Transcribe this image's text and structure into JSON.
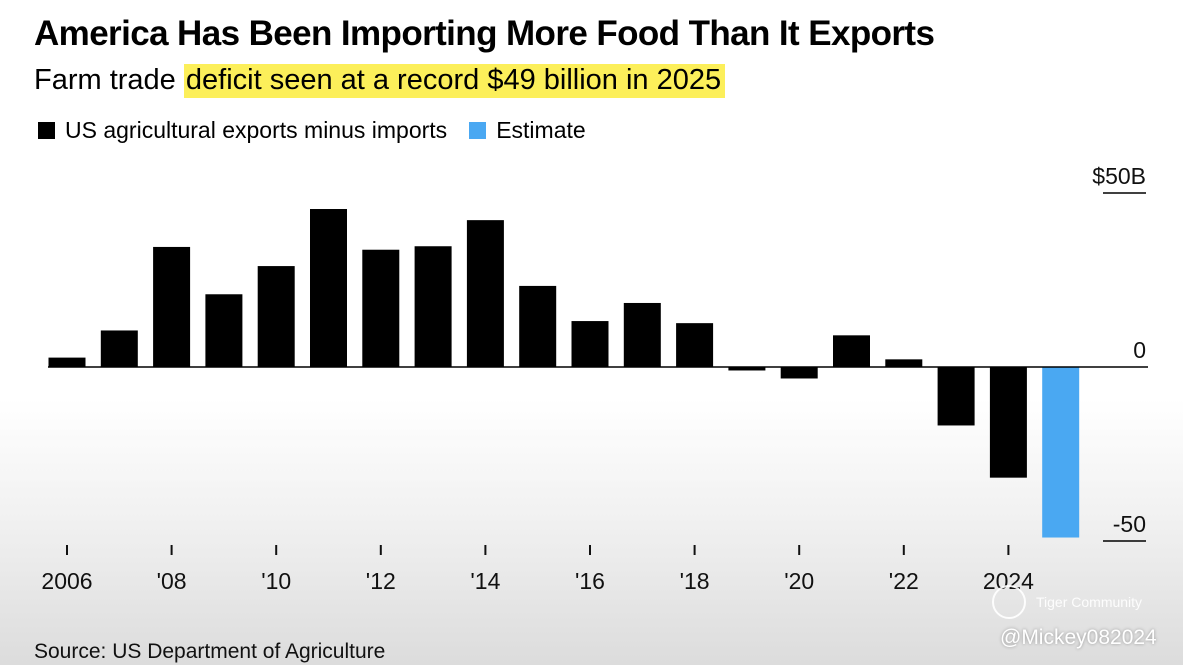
{
  "header": {
    "title": "America Has Been Importing More Food Than It Exports",
    "subtitle_plain": "Farm trade ",
    "subtitle_highlight": "deficit seen at a record $49 billion in 2025"
  },
  "legend": [
    {
      "label": "US agricultural exports minus imports",
      "color": "#000000"
    },
    {
      "label": "Estimate",
      "color": "#4aa8f2"
    }
  ],
  "chart_data": {
    "type": "bar",
    "title": "America Has Been Importing More Food Than It Exports",
    "subtitle": "Farm trade deficit seen at a record $49 billion in 2025",
    "x": [
      2006,
      2007,
      2008,
      2009,
      2010,
      2011,
      2012,
      2013,
      2014,
      2015,
      2016,
      2017,
      2018,
      2019,
      2020,
      2021,
      2022,
      2023,
      2024,
      2025
    ],
    "values": [
      2.7,
      10.5,
      34.5,
      20.9,
      29,
      45.4,
      33.7,
      34.7,
      42.2,
      23.3,
      13.2,
      18.4,
      12.6,
      -1,
      -3.3,
      9.1,
      2.2,
      -16.8,
      -31.8,
      -49
    ],
    "estimate_years": [
      2025
    ],
    "colors": {
      "actual": "#000000",
      "estimate": "#4aa8f2"
    },
    "ylim": [
      -50,
      50
    ],
    "y_ticks": [
      {
        "value": 50,
        "label": "$50B"
      },
      {
        "value": 0,
        "label": "0"
      },
      {
        "value": -50,
        "label": "-50"
      }
    ],
    "x_ticks": [
      {
        "value": 2006,
        "label": "2006"
      },
      {
        "value": 2008,
        "label": "'08"
      },
      {
        "value": 2010,
        "label": "'10"
      },
      {
        "value": 2012,
        "label": "'12"
      },
      {
        "value": 2014,
        "label": "'14"
      },
      {
        "value": 2016,
        "label": "'16"
      },
      {
        "value": 2018,
        "label": "'18"
      },
      {
        "value": 2020,
        "label": "'20"
      },
      {
        "value": 2022,
        "label": "'22"
      },
      {
        "value": 2024,
        "label": "2024"
      }
    ],
    "xlabel": "",
    "ylabel": "",
    "grid": false,
    "legend_position": "top-left"
  },
  "footer": {
    "source": "Source: US Department of Agriculture"
  },
  "watermarks": {
    "community": "Tiger Community",
    "handle": "@Mickey082024"
  }
}
